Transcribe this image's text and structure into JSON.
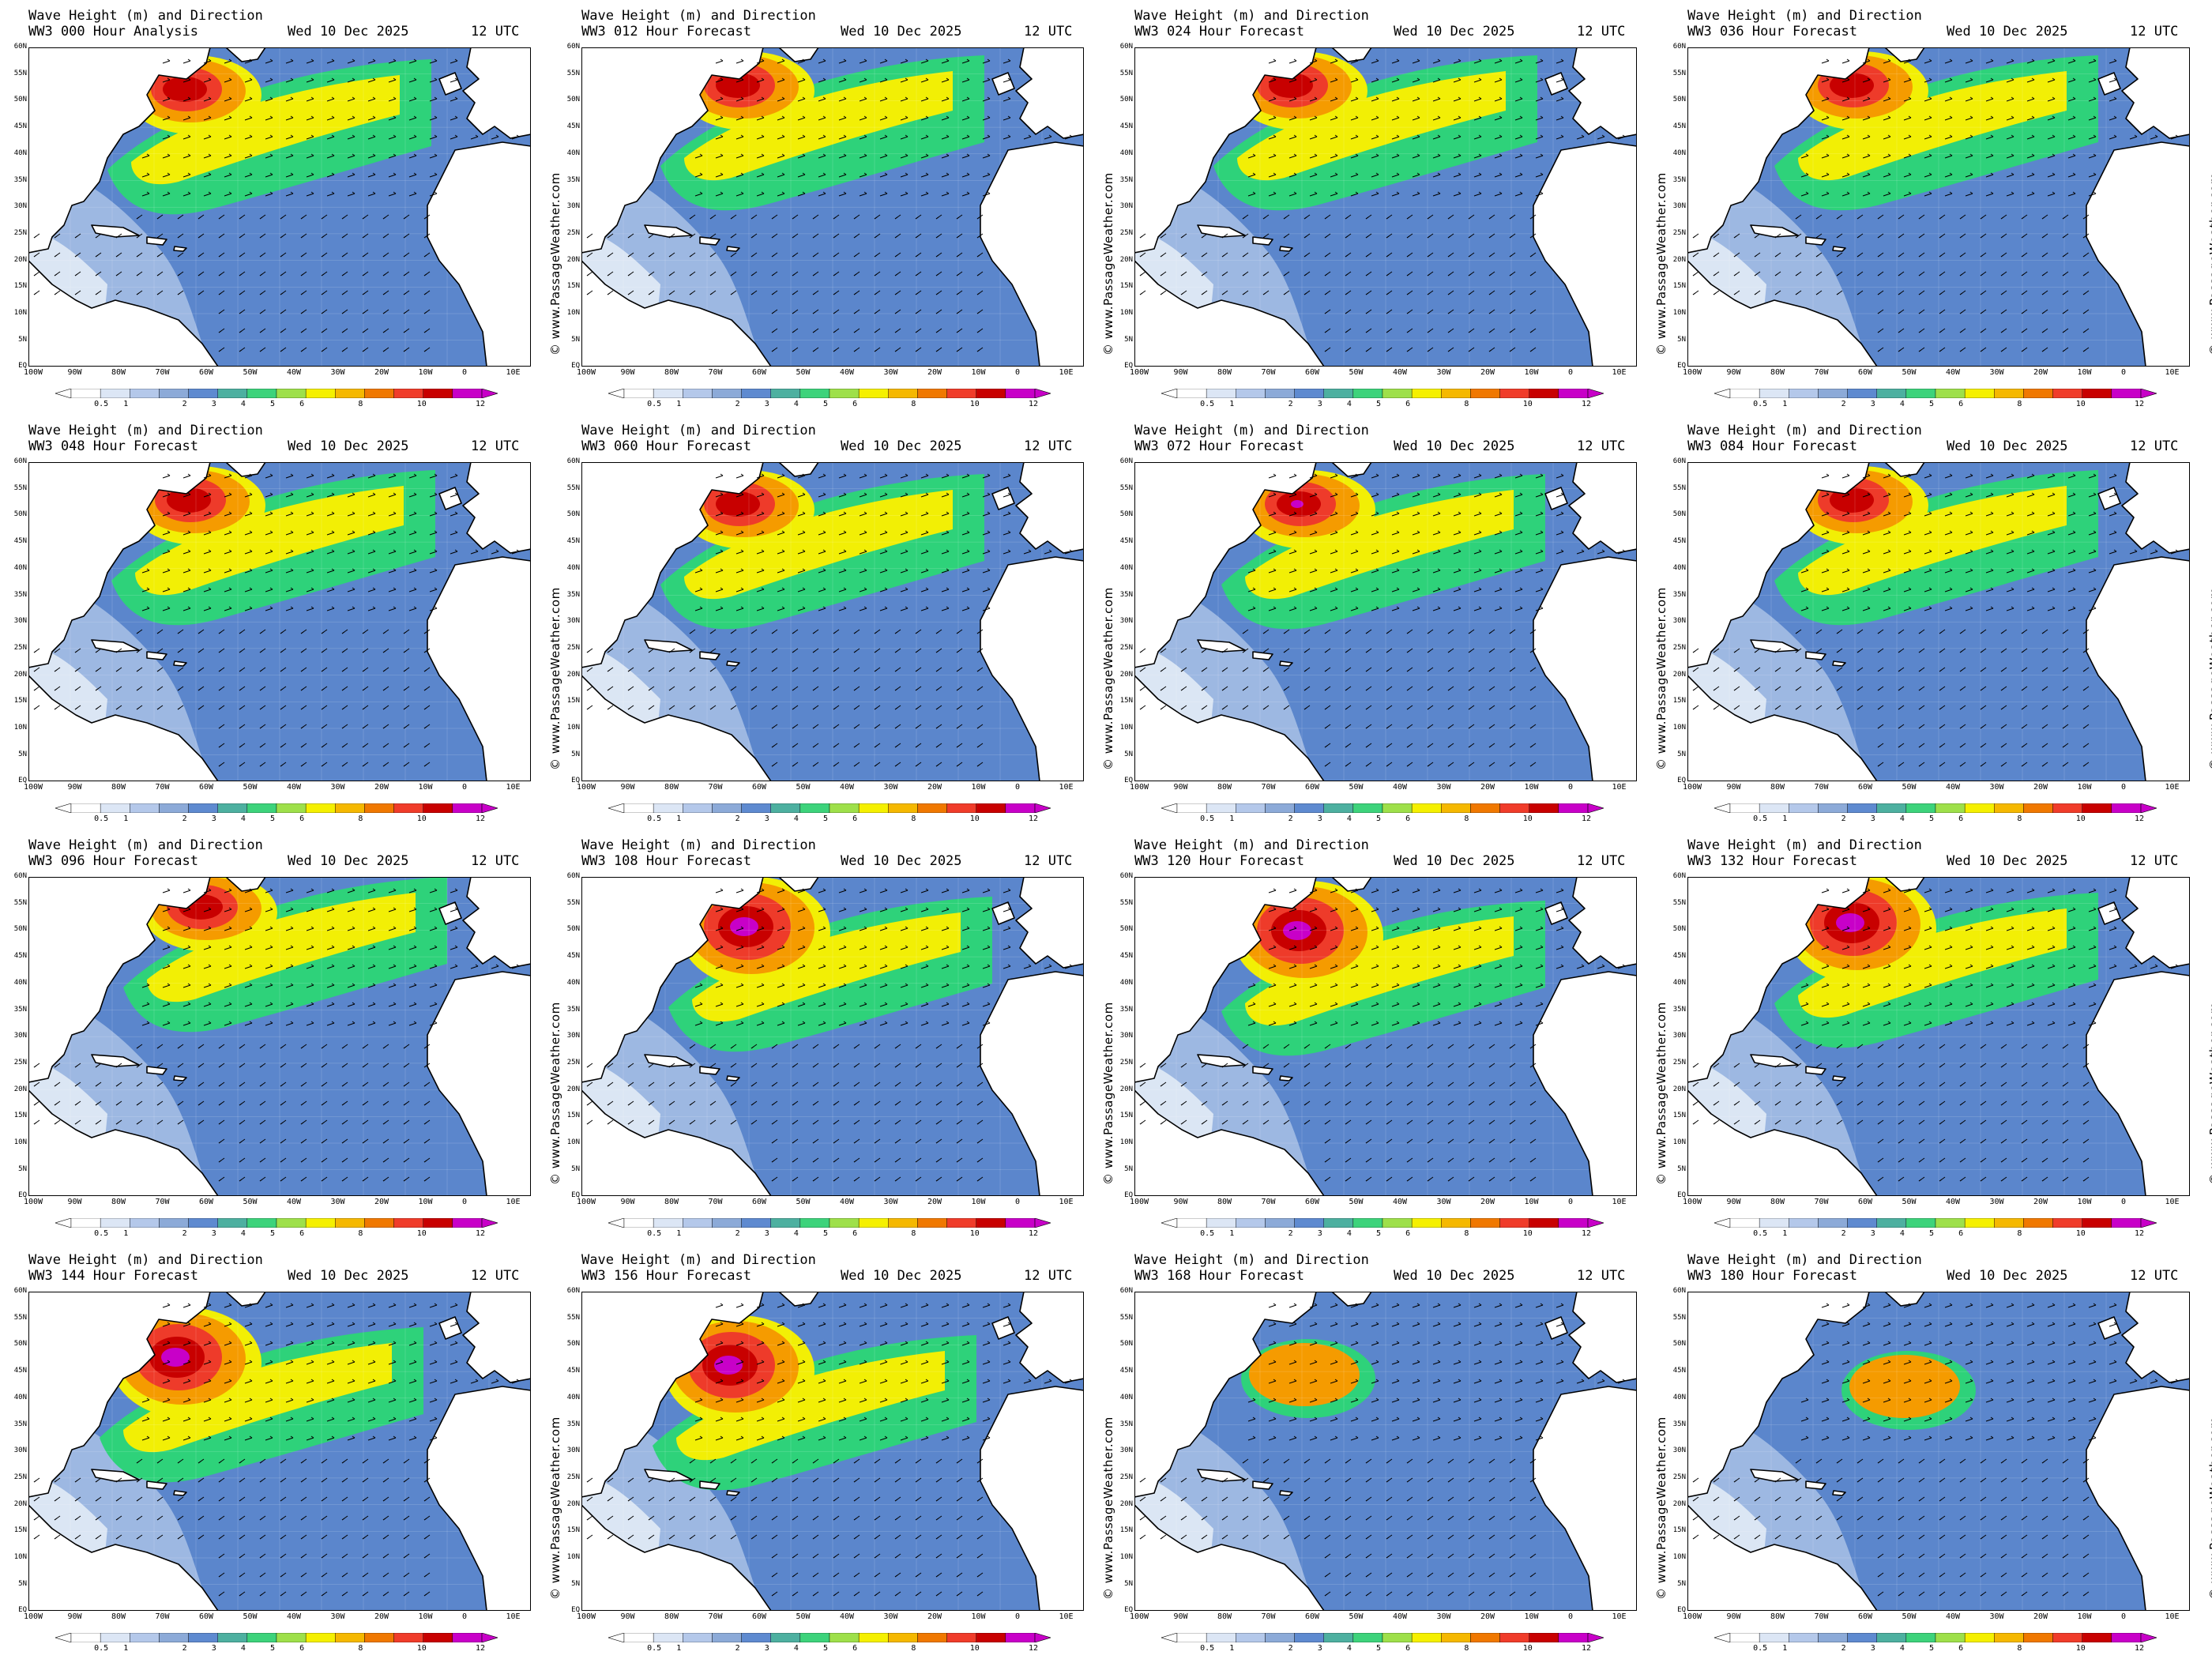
{
  "title_line1": "Wave Height (m) and Direction",
  "date": "Wed 10 Dec 2025",
  "utc": "12 UTC",
  "credit": "© www.PassageWeather.com",
  "panels": [
    {
      "label": "WW3 000 Hour Analysis"
    },
    {
      "label": "WW3 012 Hour Forecast"
    },
    {
      "label": "WW3 024 Hour Forecast"
    },
    {
      "label": "WW3 036 Hour Forecast"
    },
    {
      "label": "WW3 048 Hour Forecast"
    },
    {
      "label": "WW3 060 Hour Forecast"
    },
    {
      "label": "WW3 072 Hour Forecast"
    },
    {
      "label": "WW3 084 Hour Forecast"
    },
    {
      "label": "WW3 096 Hour Forecast"
    },
    {
      "label": "WW3 108 Hour Forecast"
    },
    {
      "label": "WW3 120 Hour Forecast"
    },
    {
      "label": "WW3 132 Hour Forecast"
    },
    {
      "label": "WW3 144 Hour Forecast"
    },
    {
      "label": "WW3 156 Hour Forecast"
    },
    {
      "label": "WW3 168 Hour Forecast"
    },
    {
      "label": "WW3 180 Hour Forecast"
    }
  ],
  "lat_labels": [
    "60N",
    "55N",
    "50N",
    "45N",
    "40N",
    "35N",
    "30N",
    "25N",
    "20N",
    "15N",
    "10N",
    "5N",
    "EQ"
  ],
  "lon_labels": [
    "100W",
    "90W",
    "80W",
    "70W",
    "60W",
    "50W",
    "40W",
    "30W",
    "20W",
    "10W",
    "0",
    "10E"
  ],
  "colorbar": {
    "labels": [
      "0.5",
      "1",
      "2",
      "3",
      "4",
      "5",
      "6",
      "8",
      "10",
      "12"
    ],
    "colors": [
      "#ffffff",
      "#dce6f5",
      "#b4c8ea",
      "#8caad8",
      "#5e8ad0",
      "#4db0a0",
      "#3dd37b",
      "#9ee04a",
      "#f5f000",
      "#f5b800",
      "#f07800",
      "#f03c2a",
      "#c80000",
      "#c800c8"
    ]
  },
  "colors": {
    "ocean_calm": "#5b86cc",
    "ocean_light": "#9db8e2",
    "ocean_pale": "#dbe6f4",
    "green": "#2ed27a",
    "lime": "#a6e24a",
    "yellow": "#f2ef05",
    "orange": "#f59b00",
    "red": "#ee3b2a",
    "darkred": "#c80000",
    "magenta": "#c800c8",
    "land": "#ffffff"
  }
}
